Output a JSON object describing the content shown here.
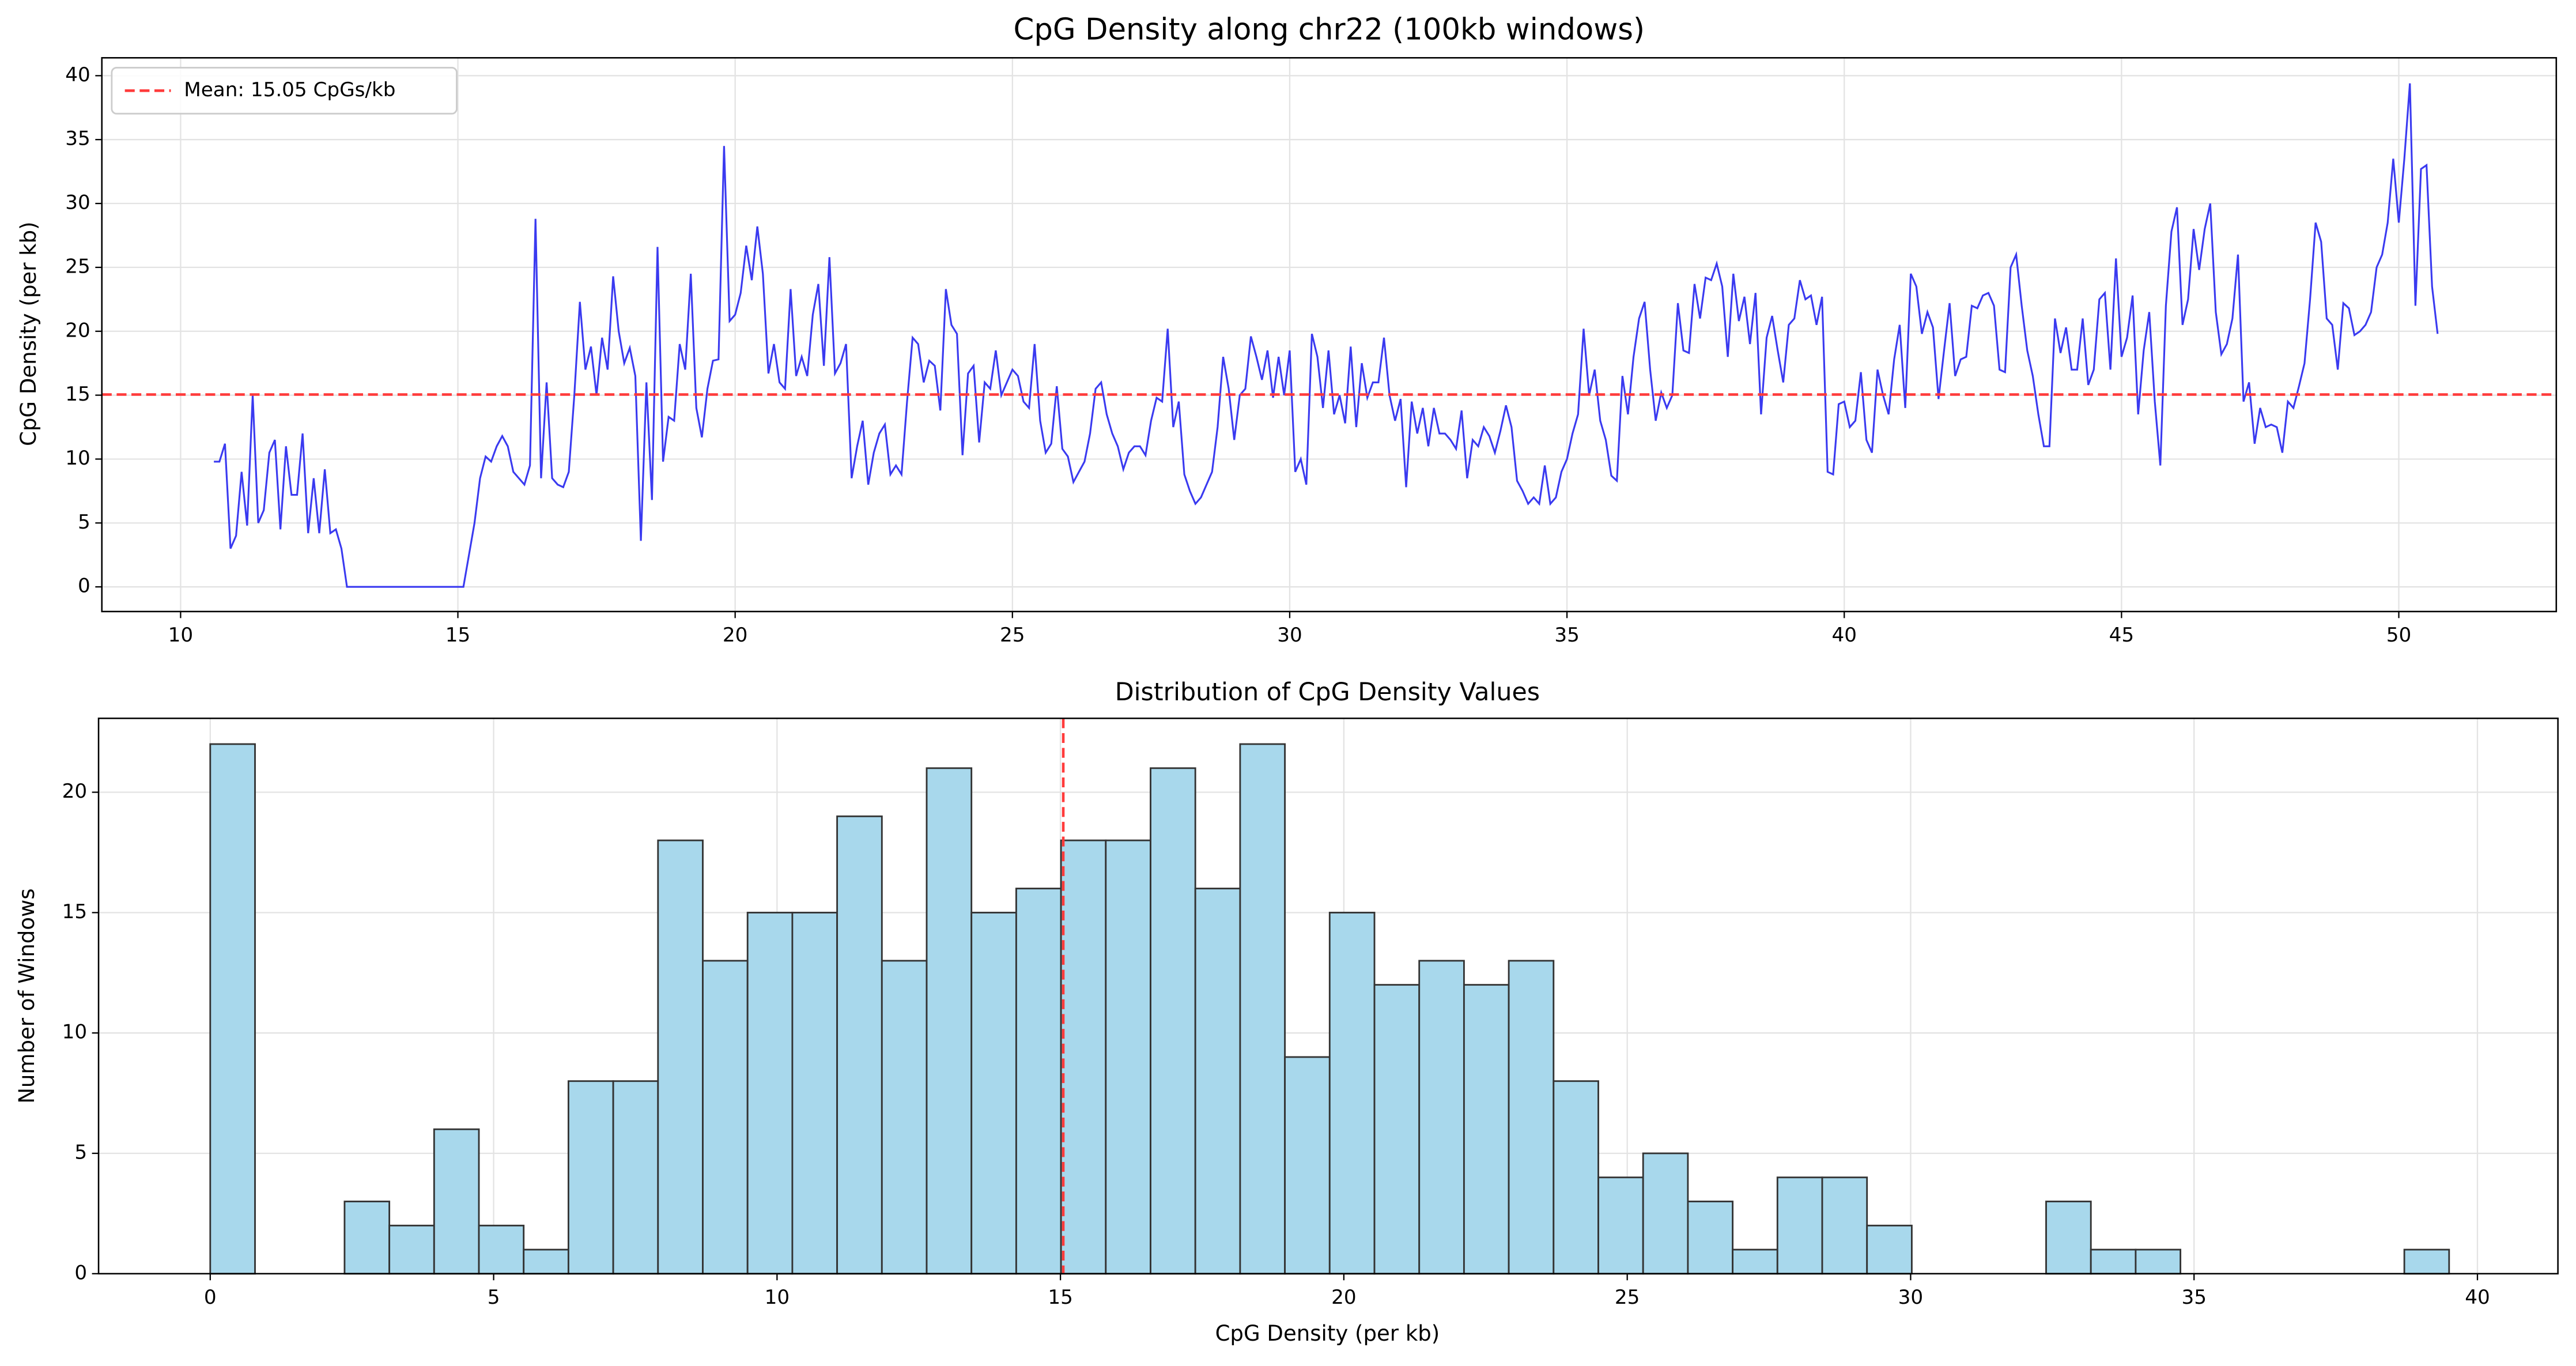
{
  "chart_data": [
    {
      "type": "line",
      "title": "CpG Density along chr22 (100kb windows)",
      "ylabel": "CpG Density (per kb)",
      "x": [
        10.6,
        10.7,
        10.8,
        10.9,
        11,
        11.1,
        11.2,
        11.3,
        11.4,
        11.5,
        11.6,
        11.7,
        11.8,
        11.9,
        12,
        12.1,
        12.2,
        12.3,
        12.4,
        12.5,
        12.6,
        12.7,
        12.8,
        12.9,
        13,
        13.1,
        13.2,
        13.3,
        13.4,
        13.5,
        13.6,
        13.7,
        13.8,
        13.9,
        14,
        14.1,
        14.2,
        14.3,
        14.4,
        14.5,
        14.6,
        14.7,
        14.8,
        14.9,
        15,
        15.1,
        15.2,
        15.3,
        15.4,
        15.5,
        15.6,
        15.7,
        15.8,
        15.9,
        16,
        16.1,
        16.2,
        16.3,
        16.4,
        16.5,
        16.6,
        16.7,
        16.8,
        16.9,
        17,
        17.1,
        17.2,
        17.3,
        17.4,
        17.5,
        17.6,
        17.7,
        17.8,
        17.9,
        18,
        18.1,
        18.2,
        18.3,
        18.4,
        18.5,
        18.6,
        18.7,
        18.8,
        18.9,
        19,
        19.1,
        19.2,
        19.3,
        19.4,
        19.5,
        19.6,
        19.7,
        19.8,
        19.9,
        20,
        20.1,
        20.2,
        20.3,
        20.4,
        20.5,
        20.6,
        20.7,
        20.8,
        20.9,
        21,
        21.1,
        21.2,
        21.3,
        21.4,
        21.5,
        21.6,
        21.7,
        21.8,
        21.9,
        22,
        22.1,
        22.2,
        22.3,
        22.4,
        22.5,
        22.6,
        22.7,
        22.8,
        22.9,
        23,
        23.1,
        23.2,
        23.3,
        23.4,
        23.5,
        23.6,
        23.7,
        23.8,
        23.9,
        24,
        24.1,
        24.2,
        24.3,
        24.4,
        24.5,
        24.6,
        24.7,
        24.8,
        24.9,
        25,
        25.1,
        25.2,
        25.3,
        25.4,
        25.5,
        25.6,
        25.7,
        25.8,
        25.9,
        26,
        26.1,
        26.2,
        26.3,
        26.4,
        26.5,
        26.6,
        26.7,
        26.8,
        26.9,
        27,
        27.1,
        27.2,
        27.3,
        27.4,
        27.5,
        27.6,
        27.7,
        27.8,
        27.9,
        28,
        28.1,
        28.2,
        28.3,
        28.4,
        28.5,
        28.6,
        28.7,
        28.8,
        28.9,
        29,
        29.1,
        29.2,
        29.3,
        29.4,
        29.5,
        29.6,
        29.7,
        29.8,
        29.9,
        30,
        30.1,
        30.2,
        30.3,
        30.4,
        30.5,
        30.6,
        30.7,
        30.8,
        30.9,
        31,
        31.1,
        31.2,
        31.3,
        31.4,
        31.5,
        31.6,
        31.7,
        31.8,
        31.9,
        32,
        32.1,
        32.2,
        32.3,
        32.4,
        32.5,
        32.6,
        32.7,
        32.8,
        32.9,
        33,
        33.1,
        33.2,
        33.3,
        33.4,
        33.5,
        33.6,
        33.7,
        33.8,
        33.9,
        34,
        34.1,
        34.2,
        34.3,
        34.4,
        34.5,
        34.6,
        34.7,
        34.8,
        34.9,
        35,
        35.1,
        35.2,
        35.3,
        35.4,
        35.5,
        35.6,
        35.7,
        35.8,
        35.9,
        36,
        36.1,
        36.2,
        36.3,
        36.4,
        36.5,
        36.6,
        36.7,
        36.8,
        36.9,
        37,
        37.1,
        37.2,
        37.3,
        37.4,
        37.5,
        37.6,
        37.7,
        37.8,
        37.9,
        38,
        38.1,
        38.2,
        38.3,
        38.4,
        38.5,
        38.6,
        38.7,
        38.8,
        38.9,
        39,
        39.1,
        39.2,
        39.3,
        39.4,
        39.5,
        39.6,
        39.7,
        39.8,
        39.9,
        40,
        40.1,
        40.2,
        40.3,
        40.4,
        40.5,
        40.6,
        40.7,
        40.8,
        40.9,
        41,
        41.1,
        41.2,
        41.3,
        41.4,
        41.5,
        41.6,
        41.7,
        41.8,
        41.9,
        42,
        42.1,
        42.2,
        42.3,
        42.4,
        42.5,
        42.6,
        42.7,
        42.8,
        42.9,
        43,
        43.1,
        43.2,
        43.3,
        43.4,
        43.5,
        43.6,
        43.7,
        43.8,
        43.9,
        44,
        44.1,
        44.2,
        44.3,
        44.4,
        44.5,
        44.6,
        44.7,
        44.8,
        44.9,
        45,
        45.1,
        45.2,
        45.3,
        45.4,
        45.5,
        45.6,
        45.7,
        45.8,
        45.9,
        46,
        46.1,
        46.2,
        46.3,
        46.4,
        46.5,
        46.6,
        46.7,
        46.8,
        46.9,
        47,
        47.1,
        47.2,
        47.3,
        47.4,
        47.5,
        47.6,
        47.7,
        47.8,
        47.9,
        48,
        48.1,
        48.2,
        48.3,
        48.4,
        48.5,
        48.6,
        48.7,
        48.8,
        48.9,
        49,
        49.1,
        49.2,
        49.3,
        49.4,
        49.5,
        49.6,
        49.7,
        49.8,
        49.9,
        50,
        50.1,
        50.2,
        50.3,
        50.4,
        50.5,
        50.6,
        50.7
      ],
      "series": [
        {
          "color": "#3a3af0",
          "values": [
            9.8,
            9.8,
            11.2,
            3.0,
            4.0,
            9.0,
            4.8,
            15.0,
            5.0,
            6.0,
            10.5,
            11.5,
            4.5,
            11.0,
            7.2,
            7.2,
            12.0,
            4.2,
            8.5,
            4.2,
            9.2,
            4.2,
            4.5,
            3.0,
            0,
            0,
            0,
            0,
            0,
            0,
            0,
            0,
            0,
            0,
            0,
            0,
            0,
            0,
            0,
            0,
            0,
            0,
            0,
            0,
            0,
            0,
            2.5,
            5.0,
            8.5,
            10.2,
            9.8,
            11.0,
            11.8,
            11.0,
            9.0,
            8.5,
            8.0,
            9.5,
            28.8,
            8.5,
            16.0,
            8.5,
            8.0,
            7.8,
            9.0,
            15.0,
            22.3,
            17.0,
            18.8,
            15.0,
            19.5,
            17.0,
            24.3,
            20.0,
            17.5,
            18.7,
            16.5,
            3.6,
            16.0,
            6.8,
            26.6,
            9.8,
            13.3,
            13.0,
            19.0,
            17.0,
            24.5,
            14.0,
            11.7,
            15.5,
            17.7,
            17.8,
            34.5,
            20.8,
            21.3,
            23.0,
            26.7,
            24.0,
            28.2,
            24.5,
            16.7,
            19.0,
            16.0,
            15.5,
            23.3,
            16.5,
            18.0,
            16.5,
            21.3,
            23.7,
            17.3,
            25.8,
            16.7,
            17.5,
            19.0,
            8.5,
            11.0,
            13.0,
            8.0,
            10.5,
            12.0,
            12.7,
            8.8,
            9.5,
            8.8,
            14.5,
            19.5,
            19.0,
            16.0,
            17.7,
            17.3,
            13.8,
            23.3,
            20.5,
            19.8,
            10.3,
            16.7,
            17.3,
            11.3,
            16.0,
            15.5,
            18.5,
            15.0,
            16.0,
            17.0,
            16.5,
            14.5,
            14.0,
            19.0,
            13.0,
            10.5,
            11.2,
            15.7,
            10.8,
            10.2,
            8.2,
            9.0,
            9.8,
            12.0,
            15.5,
            16.0,
            13.5,
            12.0,
            11.0,
            9.2,
            10.5,
            11.0,
            11.0,
            10.3,
            13.0,
            14.8,
            14.5,
            20.2,
            12.5,
            14.5,
            8.8,
            7.5,
            6.5,
            7.0,
            8.0,
            9.0,
            12.5,
            18.0,
            15.5,
            11.5,
            15.0,
            15.5,
            19.6,
            18.0,
            16.2,
            18.5,
            14.8,
            18.0,
            15.0,
            18.5,
            9.0,
            10.0,
            8.0,
            19.8,
            18.0,
            14.0,
            18.5,
            13.5,
            15.0,
            12.8,
            18.8,
            12.5,
            17.5,
            14.8,
            16.0,
            16.0,
            19.5,
            15.0,
            13.0,
            14.7,
            7.8,
            14.5,
            12.0,
            14.0,
            11.0,
            14.0,
            12.0,
            12.0,
            11.5,
            10.8,
            13.8,
            8.5,
            11.5,
            11.0,
            12.5,
            11.8,
            10.5,
            12.2,
            14.2,
            12.5,
            8.3,
            7.5,
            6.5,
            7.0,
            6.5,
            9.5,
            6.5,
            7.0,
            9.0,
            10.0,
            12.0,
            13.5,
            20.2,
            15.0,
            17.0,
            13.0,
            11.5,
            8.7,
            8.3,
            16.5,
            13.5,
            18.0,
            21.0,
            22.3,
            17.0,
            13.0,
            15.2,
            14.0,
            15.0,
            22.2,
            18.5,
            18.3,
            23.7,
            21.0,
            24.2,
            24.0,
            25.3,
            23.5,
            18.0,
            24.5,
            20.8,
            22.7,
            19.0,
            23.0,
            13.5,
            19.5,
            21.2,
            18.5,
            16.0,
            20.5,
            21.0,
            24.0,
            22.5,
            22.8,
            20.5,
            22.7,
            9.0,
            8.8,
            14.3,
            14.5,
            12.5,
            13.0,
            16.8,
            11.5,
            10.5,
            17.0,
            15.0,
            13.5,
            17.8,
            20.5,
            14.0,
            24.5,
            23.5,
            19.8,
            21.5,
            20.3,
            14.7,
            18.5,
            22.2,
            16.5,
            17.8,
            18.0,
            22.0,
            21.8,
            22.8,
            23.0,
            22.0,
            17.0,
            16.8,
            25.0,
            26.0,
            22.0,
            18.5,
            16.5,
            13.5,
            11.0,
            11.0,
            21.0,
            18.3,
            20.3,
            17.0,
            17.0,
            21.0,
            15.8,
            17.0,
            22.5,
            23.0,
            17.0,
            25.7,
            18.0,
            19.5,
            22.8,
            13.5,
            18.5,
            21.5,
            14.5,
            9.5,
            22.0,
            27.8,
            29.7,
            20.5,
            22.5,
            28.0,
            24.8,
            28.0,
            30.0,
            21.5,
            18.2,
            19.0,
            21.0,
            26.0,
            14.5,
            16.0,
            11.2,
            14.0,
            12.5,
            12.7,
            12.5,
            10.5,
            14.5,
            14.0,
            15.7,
            17.5,
            22.5,
            28.5,
            27.0,
            21.0,
            20.5,
            17.0,
            22.2,
            21.8,
            19.7,
            20.0,
            20.5,
            21.5,
            25.0,
            26.0,
            28.5,
            33.5,
            28.5,
            33.5,
            39.4,
            22.0,
            32.7,
            33.0,
            23.5,
            19.8
          ]
        }
      ],
      "hlines": [
        {
          "name": "Mean: 15.05 CpGs/kb",
          "value": 15.05,
          "color": "#ff3b3b"
        }
      ],
      "legend": "upper left",
      "xlim": [
        8.58,
        52.84
      ],
      "xticks": [
        10,
        15,
        20,
        25,
        30,
        35,
        40,
        45,
        50
      ],
      "ylim": [
        -1.93,
        41.4
      ],
      "yticks": [
        0,
        5,
        10,
        15,
        20,
        25,
        30,
        35,
        40
      ],
      "grid": true
    },
    {
      "type": "histogram",
      "title": "Distribution of CpG Density Values",
      "xlabel": "CpG Density (per kb)",
      "ylabel": "Number of Windows",
      "bins": [
        0,
        0.79,
        1.58,
        2.37,
        3.16,
        3.95,
        4.74,
        5.53,
        6.32,
        7.11,
        7.9,
        8.69,
        9.48,
        10.27,
        11.06,
        11.85,
        12.64,
        13.43,
        14.22,
        15.01,
        15.8,
        16.59,
        17.38,
        18.17,
        18.96,
        19.75,
        20.54,
        21.33,
        22.12,
        22.91,
        23.7,
        24.49,
        25.28,
        26.07,
        26.86,
        27.65,
        28.44,
        29.23,
        30.02,
        30.81,
        31.6,
        32.39,
        33.18,
        33.97,
        34.76,
        35.55,
        36.34,
        37.13,
        37.92,
        38.71,
        39.5
      ],
      "values": [
        22,
        0,
        0,
        3,
        2,
        6,
        2,
        1,
        8,
        8,
        18,
        13,
        15,
        15,
        19,
        13,
        21,
        15,
        16,
        18,
        18,
        21,
        16,
        22,
        9,
        15,
        12,
        13,
        12,
        13,
        8,
        4,
        5,
        3,
        1,
        4,
        4,
        2,
        0,
        0,
        0,
        3,
        1,
        1,
        0,
        0,
        0,
        0,
        0,
        1
      ],
      "color": "#a8d8ec",
      "edgecolor": "#333333",
      "vlines": [
        {
          "value": 15.05,
          "color": "#ff3b3b"
        }
      ],
      "xlim": [
        -1.97,
        41.42
      ],
      "xticks": [
        0,
        5,
        10,
        15,
        20,
        25,
        30,
        35,
        40
      ],
      "ylim": [
        0,
        23.07
      ],
      "yticks": [
        0,
        5,
        10,
        15,
        20
      ],
      "grid": true
    }
  ]
}
